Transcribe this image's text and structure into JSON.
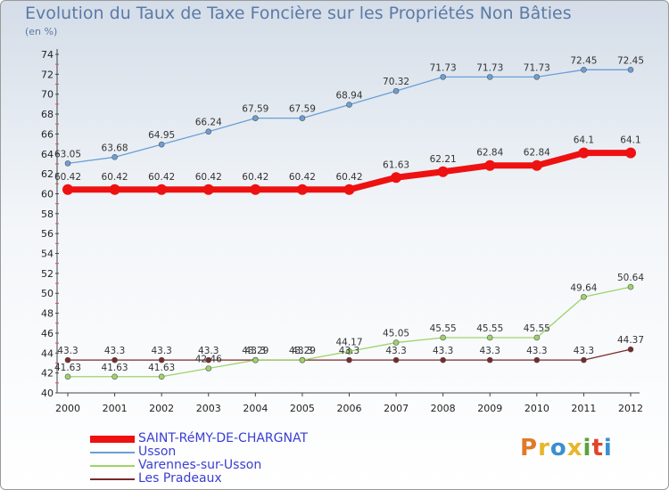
{
  "header": {
    "title": "Evolution du Taux de Taxe Foncière sur les Propriétés Non Bâties",
    "unit": "(en %)"
  },
  "logo": {
    "text": "Proxiti",
    "colors": [
      "#e07a2a",
      "#e8b62a",
      "#3a8fd0",
      "#e8b62a",
      "#5aa43a",
      "#e0452a",
      "#3a8fd0"
    ]
  },
  "chart_data": {
    "type": "line",
    "x": [
      "2000",
      "2001",
      "2002",
      "2003",
      "2004",
      "2005",
      "2006",
      "2007",
      "2008",
      "2009",
      "2010",
      "2011",
      "2012"
    ],
    "ylim": [
      40,
      74
    ],
    "yticks": [
      40,
      42,
      44,
      46,
      48,
      50,
      52,
      54,
      56,
      58,
      60,
      62,
      64,
      66,
      68,
      70,
      72,
      74
    ],
    "grid": false,
    "legend_position": "bottom-left",
    "series": [
      {
        "name": "Usson",
        "color": "#6a9fd6",
        "values": [
          63.05,
          63.68,
          64.95,
          66.24,
          67.59,
          67.59,
          68.94,
          70.32,
          71.73,
          71.73,
          71.73,
          72.45,
          72.45
        ],
        "labels": [
          "63.05",
          "63.68",
          "64.95",
          "66.24",
          "67.59",
          "67.59",
          "68.94",
          "70.32",
          "71.73",
          "71.73",
          "71.73",
          "72.45",
          "72.45"
        ]
      },
      {
        "name": "SAINT-RéMY-DE-CHARGNAT",
        "color": "#ee1111",
        "values": [
          60.42,
          60.42,
          60.42,
          60.42,
          60.42,
          60.42,
          60.42,
          61.63,
          62.21,
          62.84,
          62.84,
          64.1,
          64.1
        ],
        "labels": [
          "60.42",
          "60.42",
          "60.42",
          "60.42",
          "60.42",
          "60.42",
          "60.42",
          "61.63",
          "62.21",
          "62.84",
          "62.84",
          "64.1",
          "64.1"
        ]
      },
      {
        "name": "Varennes-sur-Usson",
        "color": "#9ed36a",
        "values": [
          41.63,
          41.63,
          41.63,
          42.46,
          43.29,
          43.29,
          44.17,
          45.05,
          45.55,
          45.55,
          45.55,
          49.64,
          50.64
        ],
        "labels": [
          "41.63",
          "41.63",
          "41.63",
          "42.46",
          "43.29",
          "43.29",
          "44.17",
          "45.05",
          "45.55",
          "45.55",
          "45.55",
          "49.64",
          "50.64"
        ]
      },
      {
        "name": "Les Pradeaux",
        "color": "#7a2a2a",
        "values": [
          43.3,
          43.3,
          43.3,
          43.3,
          43.3,
          43.3,
          43.3,
          43.3,
          43.3,
          43.3,
          43.3,
          43.3,
          44.37
        ],
        "labels": [
          "43.3",
          "43.3",
          "43.3",
          "43.3",
          "43.3",
          "43.3",
          "43.3",
          "43.3",
          "43.3",
          "43.3",
          "43.3",
          "43.3",
          "44.37"
        ]
      }
    ]
  },
  "legend": [
    {
      "name": "SAINT-RéMY-DE-CHARGNAT",
      "color": "#ee1111",
      "style": "thick"
    },
    {
      "name": "Usson",
      "color": "#6a9fd6",
      "style": "thin"
    },
    {
      "name": "Varennes-sur-Usson",
      "color": "#9ed36a",
      "style": "thin"
    },
    {
      "name": "Les Pradeaux",
      "color": "#7a2a2a",
      "style": "thin"
    }
  ]
}
